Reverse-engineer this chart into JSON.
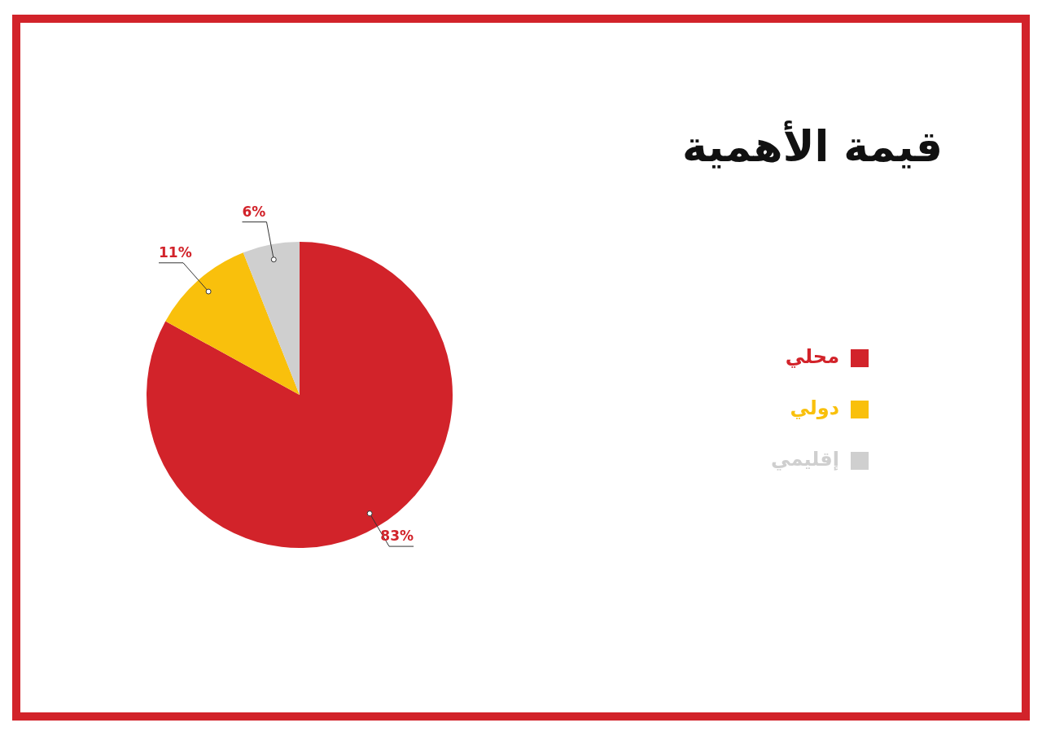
{
  "chart_data": {
    "type": "pie",
    "title": "قيمة الأهمية",
    "categories": [
      "محلي",
      "دولي",
      "إقليمي"
    ],
    "values": [
      83,
      11,
      6
    ],
    "colors": [
      "#d2232a",
      "#f9c00c",
      "#cfcfcf"
    ],
    "value_labels": [
      "83%",
      "11%",
      "6%"
    ],
    "legend": "right"
  }
}
